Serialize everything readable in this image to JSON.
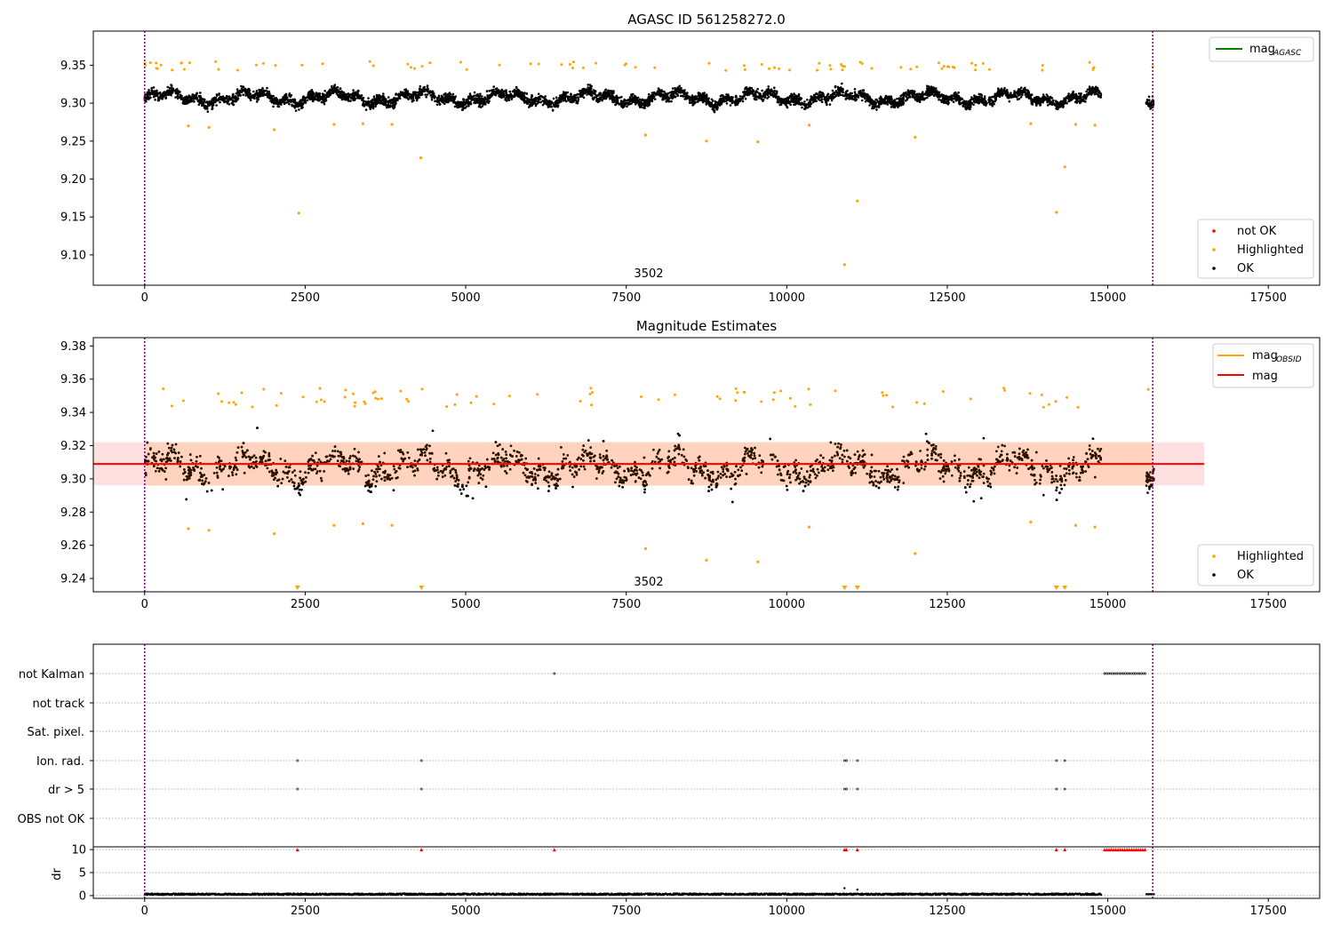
{
  "chart_data": [
    {
      "type": "scatter",
      "title": "AGASC ID 561258272.0",
      "xlim": [
        -800,
        18300
      ],
      "ylim": [
        9.06,
        9.395
      ],
      "xticks": [
        0,
        2500,
        5000,
        7500,
        10000,
        12500,
        15000,
        17500
      ],
      "yticks": [
        9.1,
        9.15,
        9.2,
        9.25,
        9.3,
        9.35
      ],
      "vlines": [
        0,
        15700
      ],
      "annotation": {
        "text": "3502",
        "x": 7850,
        "y": 9.075
      },
      "legend_lines": [
        {
          "label": "mag",
          "sub": "AGASC",
          "color": "#008000"
        }
      ],
      "legend_points": [
        {
          "label": "not OK",
          "color": "#ff0000"
        },
        {
          "label": "Highlighted",
          "color": "#ffa500"
        },
        {
          "label": "OK",
          "color": "#000000"
        }
      ],
      "highlighted_outliers": [
        [
          680,
          9.27
        ],
        [
          1000,
          9.268
        ],
        [
          2020,
          9.265
        ],
        [
          2400,
          9.155
        ],
        [
          2950,
          9.272
        ],
        [
          3400,
          9.273
        ],
        [
          3850,
          9.272
        ],
        [
          4300,
          9.228
        ],
        [
          7800,
          9.258
        ],
        [
          8750,
          9.25
        ],
        [
          9550,
          9.249
        ],
        [
          10350,
          9.271
        ],
        [
          10900,
          9.087
        ],
        [
          11100,
          9.171
        ],
        [
          12000,
          9.255
        ],
        [
          13800,
          9.273
        ],
        [
          14200,
          9.156
        ],
        [
          14330,
          9.216
        ],
        [
          14500,
          9.272
        ],
        [
          14800,
          9.271
        ]
      ],
      "series": [
        {
          "name": "OK",
          "segments": [
            [
              0,
              14900
            ],
            [
              15600,
              15720
            ]
          ],
          "center": 9.307,
          "spread": 0.012
        }
      ]
    },
    {
      "type": "scatter",
      "title": "Magnitude Estimates",
      "xlim": [
        -800,
        18300
      ],
      "ylim": [
        9.232,
        9.385
      ],
      "xticks": [
        0,
        2500,
        5000,
        7500,
        10000,
        12500,
        15000,
        17500
      ],
      "yticks": [
        9.24,
        9.26,
        9.28,
        9.3,
        9.32,
        9.34,
        9.36,
        9.38
      ],
      "vlines": [
        0,
        15700
      ],
      "annotation": {
        "text": "3502",
        "x": 7850,
        "y": 9.238
      },
      "mag_line": 9.309,
      "mag_band": [
        9.296,
        9.322
      ],
      "obsid_band": [
        9.296,
        9.322
      ],
      "band_x": [
        -800,
        16500
      ],
      "obsid_x": [
        0,
        15700
      ],
      "legend_lines": [
        {
          "label": "mag",
          "sub": "OBSID",
          "color": "#ffa500"
        },
        {
          "label": "mag",
          "sub": "",
          "color": "#ff0000"
        }
      ],
      "legend_points": [
        {
          "label": "Highlighted",
          "color": "#ffa500"
        },
        {
          "label": "OK",
          "color": "#000000"
        }
      ],
      "triangles": [
        2380,
        4310,
        10900,
        11100,
        14200,
        14330
      ],
      "highlighted_outliers": [
        [
          680,
          9.27
        ],
        [
          1000,
          9.269
        ],
        [
          2020,
          9.267
        ],
        [
          2950,
          9.272
        ],
        [
          3400,
          9.273
        ],
        [
          3850,
          9.272
        ],
        [
          7800,
          9.258
        ],
        [
          8750,
          9.251
        ],
        [
          9550,
          9.25
        ],
        [
          10350,
          9.271
        ],
        [
          12000,
          9.255
        ],
        [
          13800,
          9.274
        ],
        [
          14500,
          9.272
        ],
        [
          14800,
          9.271
        ]
      ],
      "series": [
        {
          "name": "OK",
          "segments": [
            [
              0,
              14900
            ],
            [
              15600,
              15720
            ]
          ],
          "center": 9.307,
          "spread": 0.012
        }
      ]
    },
    {
      "type": "scatter",
      "xlim": [
        -800,
        18300
      ],
      "xticks": [
        0,
        2500,
        5000,
        7500,
        10000,
        12500,
        15000,
        17500
      ],
      "vlines": [
        0,
        15700
      ],
      "flag_labels": [
        "not Kalman",
        "not track",
        "Sat. pixel.",
        "Ion. rad.",
        "dr > 5",
        "OBS not OK"
      ],
      "flags": {
        "not Kalman": [
          6380,
          [
            14950,
            15600
          ]
        ],
        "not track": [],
        "Sat. pixel.": [],
        "Ion. rad.": [
          2380,
          4310,
          10900,
          10930,
          11100,
          14200,
          14330
        ],
        "dr > 5": [
          2380,
          4310,
          10900,
          10930,
          11100,
          14200,
          14330
        ],
        "OBS not OK": []
      },
      "dr": {
        "ylabel": "dr",
        "ylim": [
          -0.6,
          10.6
        ],
        "yticks": [
          0,
          5,
          10
        ],
        "red_markers": [
          2380,
          4310,
          6380,
          10900,
          10930,
          11100,
          14200,
          14330,
          [
            14950,
            15600
          ]
        ],
        "spikes": [
          [
            10900,
            1.6
          ],
          [
            11100,
            1.3
          ]
        ],
        "baseline": 0.3
      }
    }
  ]
}
